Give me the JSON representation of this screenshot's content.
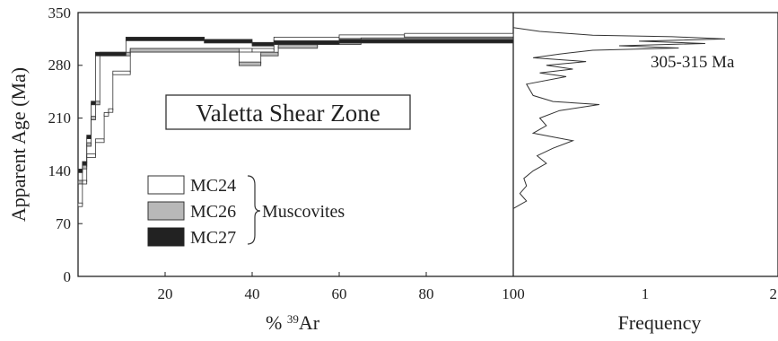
{
  "chart_data": [
    {
      "type": "line",
      "subtype": "step (age spectrum)",
      "title": "Valetta Shear Zone",
      "xlabel_prefix": "% ",
      "xlabel_sup": "39",
      "xlabel_suffix": "Ar",
      "ylabel": "Apparent Age (Ma)",
      "xlim": [
        0,
        100
      ],
      "ylim": [
        0,
        350
      ],
      "xticks": [
        "20",
        "40",
        "60",
        "80",
        "100"
      ],
      "yticks": [
        "0",
        "70",
        "140",
        "210",
        "280",
        "350"
      ],
      "legend": {
        "group_label": "Muscovites",
        "placement": "lower-left"
      },
      "series": [
        {
          "name": "MC24",
          "fill": "#ffffff",
          "steps": [
            [
              0,
              95
            ],
            [
              1,
              125
            ],
            [
              2,
              160
            ],
            [
              4,
              180
            ],
            [
              6,
              215
            ],
            [
              7,
              220
            ],
            [
              8,
              270
            ],
            [
              12,
              300
            ],
            [
              40,
              300
            ],
            [
              45,
              315
            ],
            [
              60,
              318
            ],
            [
              75,
              320
            ],
            [
              100,
              320
            ]
          ]
        },
        {
          "name": "MC26",
          "fill": "#b8b8b8",
          "steps": [
            [
              0,
              125
            ],
            [
              1,
              145
            ],
            [
              2,
              175
            ],
            [
              3,
              210
            ],
            [
              4,
              230
            ],
            [
              5,
              295
            ],
            [
              12,
              300
            ],
            [
              37,
              282
            ],
            [
              42,
              295
            ],
            [
              46,
              305
            ],
            [
              55,
              310
            ],
            [
              65,
              314
            ],
            [
              100,
              318
            ]
          ]
        },
        {
          "name": "MC27",
          "fill": "#222222",
          "steps": [
            [
              0,
              140
            ],
            [
              1,
              150
            ],
            [
              2,
              185
            ],
            [
              3,
              230
            ],
            [
              4,
              295
            ],
            [
              11,
              315
            ],
            [
              29,
              312
            ],
            [
              40,
              308
            ],
            [
              45,
              310
            ],
            [
              60,
              312
            ],
            [
              100,
              318
            ]
          ]
        }
      ]
    },
    {
      "type": "line",
      "subtype": "age probability (frequency) curve",
      "xlabel": "Frequency",
      "xticks": [
        "1",
        "2"
      ],
      "xlim": [
        0,
        2
      ],
      "annotation": "305-315 Ma",
      "curve": [
        [
          90,
          0.0
        ],
        [
          95,
          0.05
        ],
        [
          100,
          0.1
        ],
        [
          110,
          0.05
        ],
        [
          120,
          0.1
        ],
        [
          130,
          0.08
        ],
        [
          140,
          0.15
        ],
        [
          150,
          0.25
        ],
        [
          160,
          0.18
        ],
        [
          170,
          0.3
        ],
        [
          180,
          0.45
        ],
        [
          185,
          0.3
        ],
        [
          190,
          0.15
        ],
        [
          200,
          0.25
        ],
        [
          210,
          0.2
        ],
        [
          220,
          0.35
        ],
        [
          228,
          0.65
        ],
        [
          232,
          0.3
        ],
        [
          240,
          0.15
        ],
        [
          255,
          0.1
        ],
        [
          265,
          0.4
        ],
        [
          270,
          0.2
        ],
        [
          275,
          0.45
        ],
        [
          280,
          0.25
        ],
        [
          285,
          0.55
        ],
        [
          290,
          0.15
        ],
        [
          295,
          0.35
        ],
        [
          300,
          0.6
        ],
        [
          303,
          1.25
        ],
        [
          306,
          0.8
        ],
        [
          309,
          1.45
        ],
        [
          312,
          0.95
        ],
        [
          315,
          1.6
        ],
        [
          318,
          1.2
        ],
        [
          320,
          0.6
        ],
        [
          325,
          0.2
        ],
        [
          330,
          0.0
        ]
      ]
    }
  ]
}
